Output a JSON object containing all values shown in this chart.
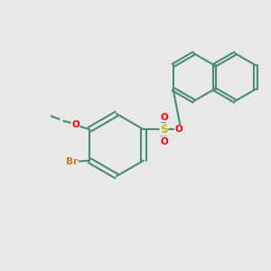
{
  "background_color": "#e8e8e8",
  "bond_color": "#4a8a7a",
  "bond_lw": 1.5,
  "figsize": [
    3.0,
    3.0
  ],
  "dpi": 100,
  "colors": {
    "O": "#ff0000",
    "S": "#ccbb00",
    "Br": "#cc7722",
    "C": "#4a8a7a",
    "bond": "#4a8a7a"
  },
  "font_size": 7.5
}
